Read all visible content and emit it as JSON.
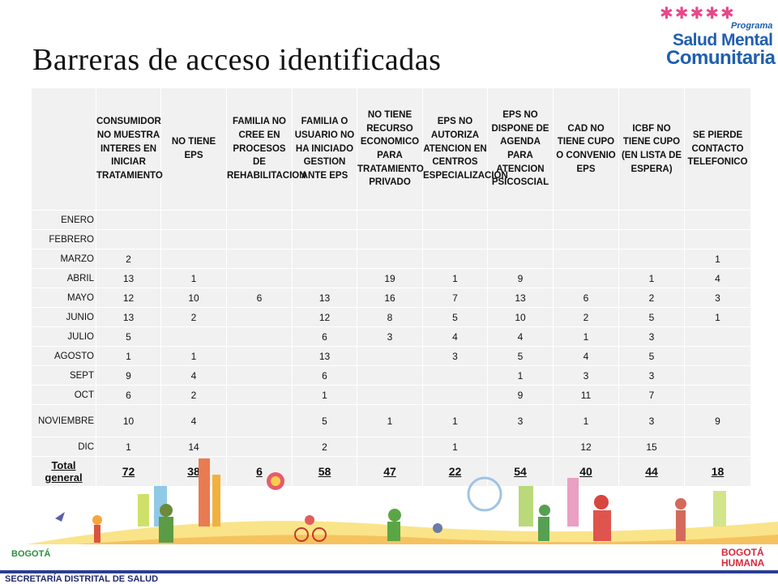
{
  "title": "Barreras de acceso identificadas",
  "logo": {
    "programa": "Programa",
    "line1": "Salud Mental",
    "line2": "Comunitaria"
  },
  "table": {
    "headers": [
      "",
      "CONSUMIDOR NO MUESTRA INTERES EN INICIAR TRATAMIENTO",
      "NO TIENE EPS",
      "FAMILIA NO CREE EN PROCESOS DE REHABILITACION",
      "FAMILIA O USUARIO NO HA INICIADO GESTION ANTE EPS",
      "NO TIENE RECURSO ECONOMICO PARA TRATAMIENTO PRIVADO",
      "EPS NO AUTORIZA ATENCION EN CENTROS ESPECIALIZACION",
      "EPS NO DISPONE DE AGENDA PARA ATENCION PSICOSCIAL",
      "CAD NO TIENE CUPO O CONVENIO EPS",
      "ICBF NO TIENE CUPO (EN LISTA DE ESPERA)",
      "SE PIERDE CONTACTO TELEFONICO"
    ],
    "rows": [
      [
        "ENERO",
        "",
        "",
        "",
        "",
        "",
        "",
        "",
        "",
        "",
        ""
      ],
      [
        "FEBRERO",
        "",
        "",
        "",
        "",
        "",
        "",
        "",
        "",
        "",
        ""
      ],
      [
        "MARZO",
        "2",
        "",
        "",
        "",
        "",
        "",
        "",
        "",
        "",
        "1"
      ],
      [
        "ABRIL",
        "13",
        "1",
        "",
        "",
        "19",
        "1",
        "9",
        "",
        "1",
        "4"
      ],
      [
        "MAYO",
        "12",
        "10",
        "6",
        "13",
        "16",
        "7",
        "13",
        "6",
        "2",
        "3"
      ],
      [
        "JUNIO",
        "13",
        "2",
        "",
        "12",
        "8",
        "5",
        "10",
        "2",
        "5",
        "1"
      ],
      [
        "JULIO",
        "5",
        "",
        "",
        "6",
        "3",
        "4",
        "4",
        "1",
        "3",
        ""
      ],
      [
        "AGOSTO",
        "1",
        "1",
        "",
        "13",
        "",
        "3",
        "5",
        "4",
        "5",
        ""
      ],
      [
        "SEPT",
        "9",
        "4",
        "",
        "6",
        "",
        "",
        "1",
        "3",
        "3",
        ""
      ],
      [
        "OCT",
        "6",
        "2",
        "",
        "1",
        "",
        "",
        "9",
        "11",
        "7",
        ""
      ],
      [
        "NOVIEMBRE",
        "10",
        "4",
        "",
        "5",
        "1",
        "1",
        "3",
        "1",
        "3",
        "9"
      ],
      [
        "DIC",
        "1",
        "14",
        "",
        "2",
        "",
        "1",
        "",
        "12",
        "15",
        ""
      ]
    ],
    "total": [
      "Total general",
      "72",
      "38",
      "6",
      "58",
      "47",
      "22",
      "54",
      "40",
      "44",
      "18"
    ]
  },
  "footer": {
    "bogota": "BOGOTÁ",
    "secretaria": "SECRETARÍA DISTRITAL DE SALUD",
    "humana_1": "BOGOTÁ",
    "humana_2": "HUMANA"
  },
  "colors": {
    "cell_bg": "#f1f1f1",
    "footer_rule": "#2d3e8e",
    "logo_blue": "#1f5fae"
  }
}
